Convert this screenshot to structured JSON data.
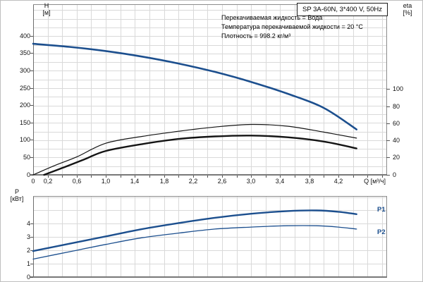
{
  "title_box": {
    "label": "SP 3A-60N, 3*400 V, 50Hz"
  },
  "info": {
    "lines": [
      "Перекачиваемая жидкость = Вода",
      "Температура перекачиваемой жидкости = 20 °C",
      "Плотность = 998.2 кг/м³"
    ]
  },
  "axis_titles": {
    "h": "H",
    "h_unit": "[м]",
    "eta": "eta",
    "eta_unit": "[%]",
    "p": "P",
    "p_unit": "[кВт]",
    "q_unit": "Q [м³/ч]"
  },
  "curve_labels": {
    "p1": "P1",
    "p2": "P2"
  },
  "colors": {
    "curve_blue": "#1c4f8e",
    "curve_black": "#141414",
    "grid": "#d9d9d9",
    "border": "#8c8c8c",
    "axis_dark": "#6e6e6e"
  },
  "chart_data": [
    {
      "type": "line",
      "title": "SP 3A-60N, 3*400 V, 50Hz",
      "xlabel": "Q [м³/ч]",
      "ylabel_left": "H [м]",
      "ylabel_right": "eta [%]",
      "xlim": [
        0,
        4.87
      ],
      "ylim_left": [
        0,
        490
      ],
      "ylim_right": [
        0,
        199
      ],
      "grid": true,
      "x_grid_step": 0.2,
      "y_grid_step_left": 25,
      "x_tick_labels": [
        {
          "v": 0,
          "label": "0"
        },
        {
          "v": 0.2,
          "label": "0,2"
        },
        {
          "v": 0.6,
          "label": "0,6"
        },
        {
          "v": 1.0,
          "label": "1,0"
        },
        {
          "v": 1.4,
          "label": "1,4"
        },
        {
          "v": 1.8,
          "label": "1,8"
        },
        {
          "v": 2.2,
          "label": "2,2"
        },
        {
          "v": 2.6,
          "label": "2,6"
        },
        {
          "v": 3.0,
          "label": "3,0"
        },
        {
          "v": 3.4,
          "label": "3,4"
        },
        {
          "v": 3.8,
          "label": "3,8"
        },
        {
          "v": 4.2,
          "label": "4,2"
        }
      ],
      "y_tick_labels_left": [
        {
          "v": 0,
          "label": "0"
        },
        {
          "v": 50,
          "label": "50"
        },
        {
          "v": 100,
          "label": "100"
        },
        {
          "v": 150,
          "label": "150"
        },
        {
          "v": 200,
          "label": "200"
        },
        {
          "v": 250,
          "label": "250"
        },
        {
          "v": 300,
          "label": "300"
        },
        {
          "v": 350,
          "label": "350"
        },
        {
          "v": 400,
          "label": "400"
        }
      ],
      "y_tick_labels_right": [
        {
          "v": 0,
          "label": "0"
        },
        {
          "v": 20,
          "label": "20"
        },
        {
          "v": 40,
          "label": "40"
        },
        {
          "v": 60,
          "label": "60"
        },
        {
          "v": 80,
          "label": "80"
        },
        {
          "v": 100,
          "label": "100"
        }
      ],
      "series": [
        {
          "name": "H",
          "axis": "left",
          "color_key": "curve_blue",
          "x": [
            0,
            0.5,
            1.0,
            1.5,
            2.0,
            2.5,
            3.0,
            3.5,
            4.0,
            4.45
          ],
          "y": [
            378,
            369,
            357,
            341,
            321,
            297,
            268,
            234,
            193,
            131
          ]
        },
        {
          "name": "eta-pump",
          "axis": "right",
          "color_key": "curve_black",
          "x": [
            0,
            0.3,
            0.6,
            1.0,
            1.5,
            2.0,
            2.5,
            3.0,
            3.5,
            4.0,
            4.45
          ],
          "y": [
            0,
            11,
            21,
            37,
            45,
            51,
            56,
            59,
            57,
            50,
            43
          ]
        },
        {
          "name": "eta-total",
          "axis": "right",
          "color_key": "curve_black",
          "x": [
            0.15,
            0.4,
            0.7,
            1.0,
            1.5,
            2.0,
            2.5,
            3.0,
            3.5,
            4.0,
            4.45
          ],
          "y": [
            0,
            8,
            18,
            28,
            36,
            42,
            45,
            46,
            44,
            39,
            31
          ]
        }
      ]
    },
    {
      "type": "line",
      "title": "",
      "xlabel": "",
      "ylabel_left": "P [кВт]",
      "xlim": [
        0,
        4.87
      ],
      "ylim_left": [
        0,
        6.03
      ],
      "grid": true,
      "x_grid_step": 0.2,
      "y_grid_step_left": 1,
      "x_tick_labels": [],
      "y_tick_labels_left": [
        {
          "v": 0,
          "label": "0"
        },
        {
          "v": 1,
          "label": "1"
        },
        {
          "v": 2,
          "label": "2"
        },
        {
          "v": 3,
          "label": "3"
        },
        {
          "v": 4,
          "label": "4"
        }
      ],
      "series": [
        {
          "name": "P1",
          "axis": "left",
          "color_key": "curve_blue",
          "x": [
            0,
            0.5,
            1.0,
            1.5,
            2.0,
            2.5,
            3.0,
            3.5,
            3.9,
            4.2,
            4.45
          ],
          "y": [
            1.95,
            2.5,
            3.05,
            3.6,
            4.05,
            4.45,
            4.75,
            4.95,
            5.0,
            4.9,
            4.72
          ]
        },
        {
          "name": "P2",
          "axis": "left",
          "color_key": "curve_blue",
          "x": [
            0,
            0.5,
            1.0,
            1.5,
            2.0,
            2.5,
            3.0,
            3.5,
            3.9,
            4.2,
            4.45
          ],
          "y": [
            1.35,
            1.9,
            2.45,
            2.95,
            3.3,
            3.6,
            3.75,
            3.85,
            3.85,
            3.75,
            3.6
          ]
        }
      ]
    }
  ]
}
